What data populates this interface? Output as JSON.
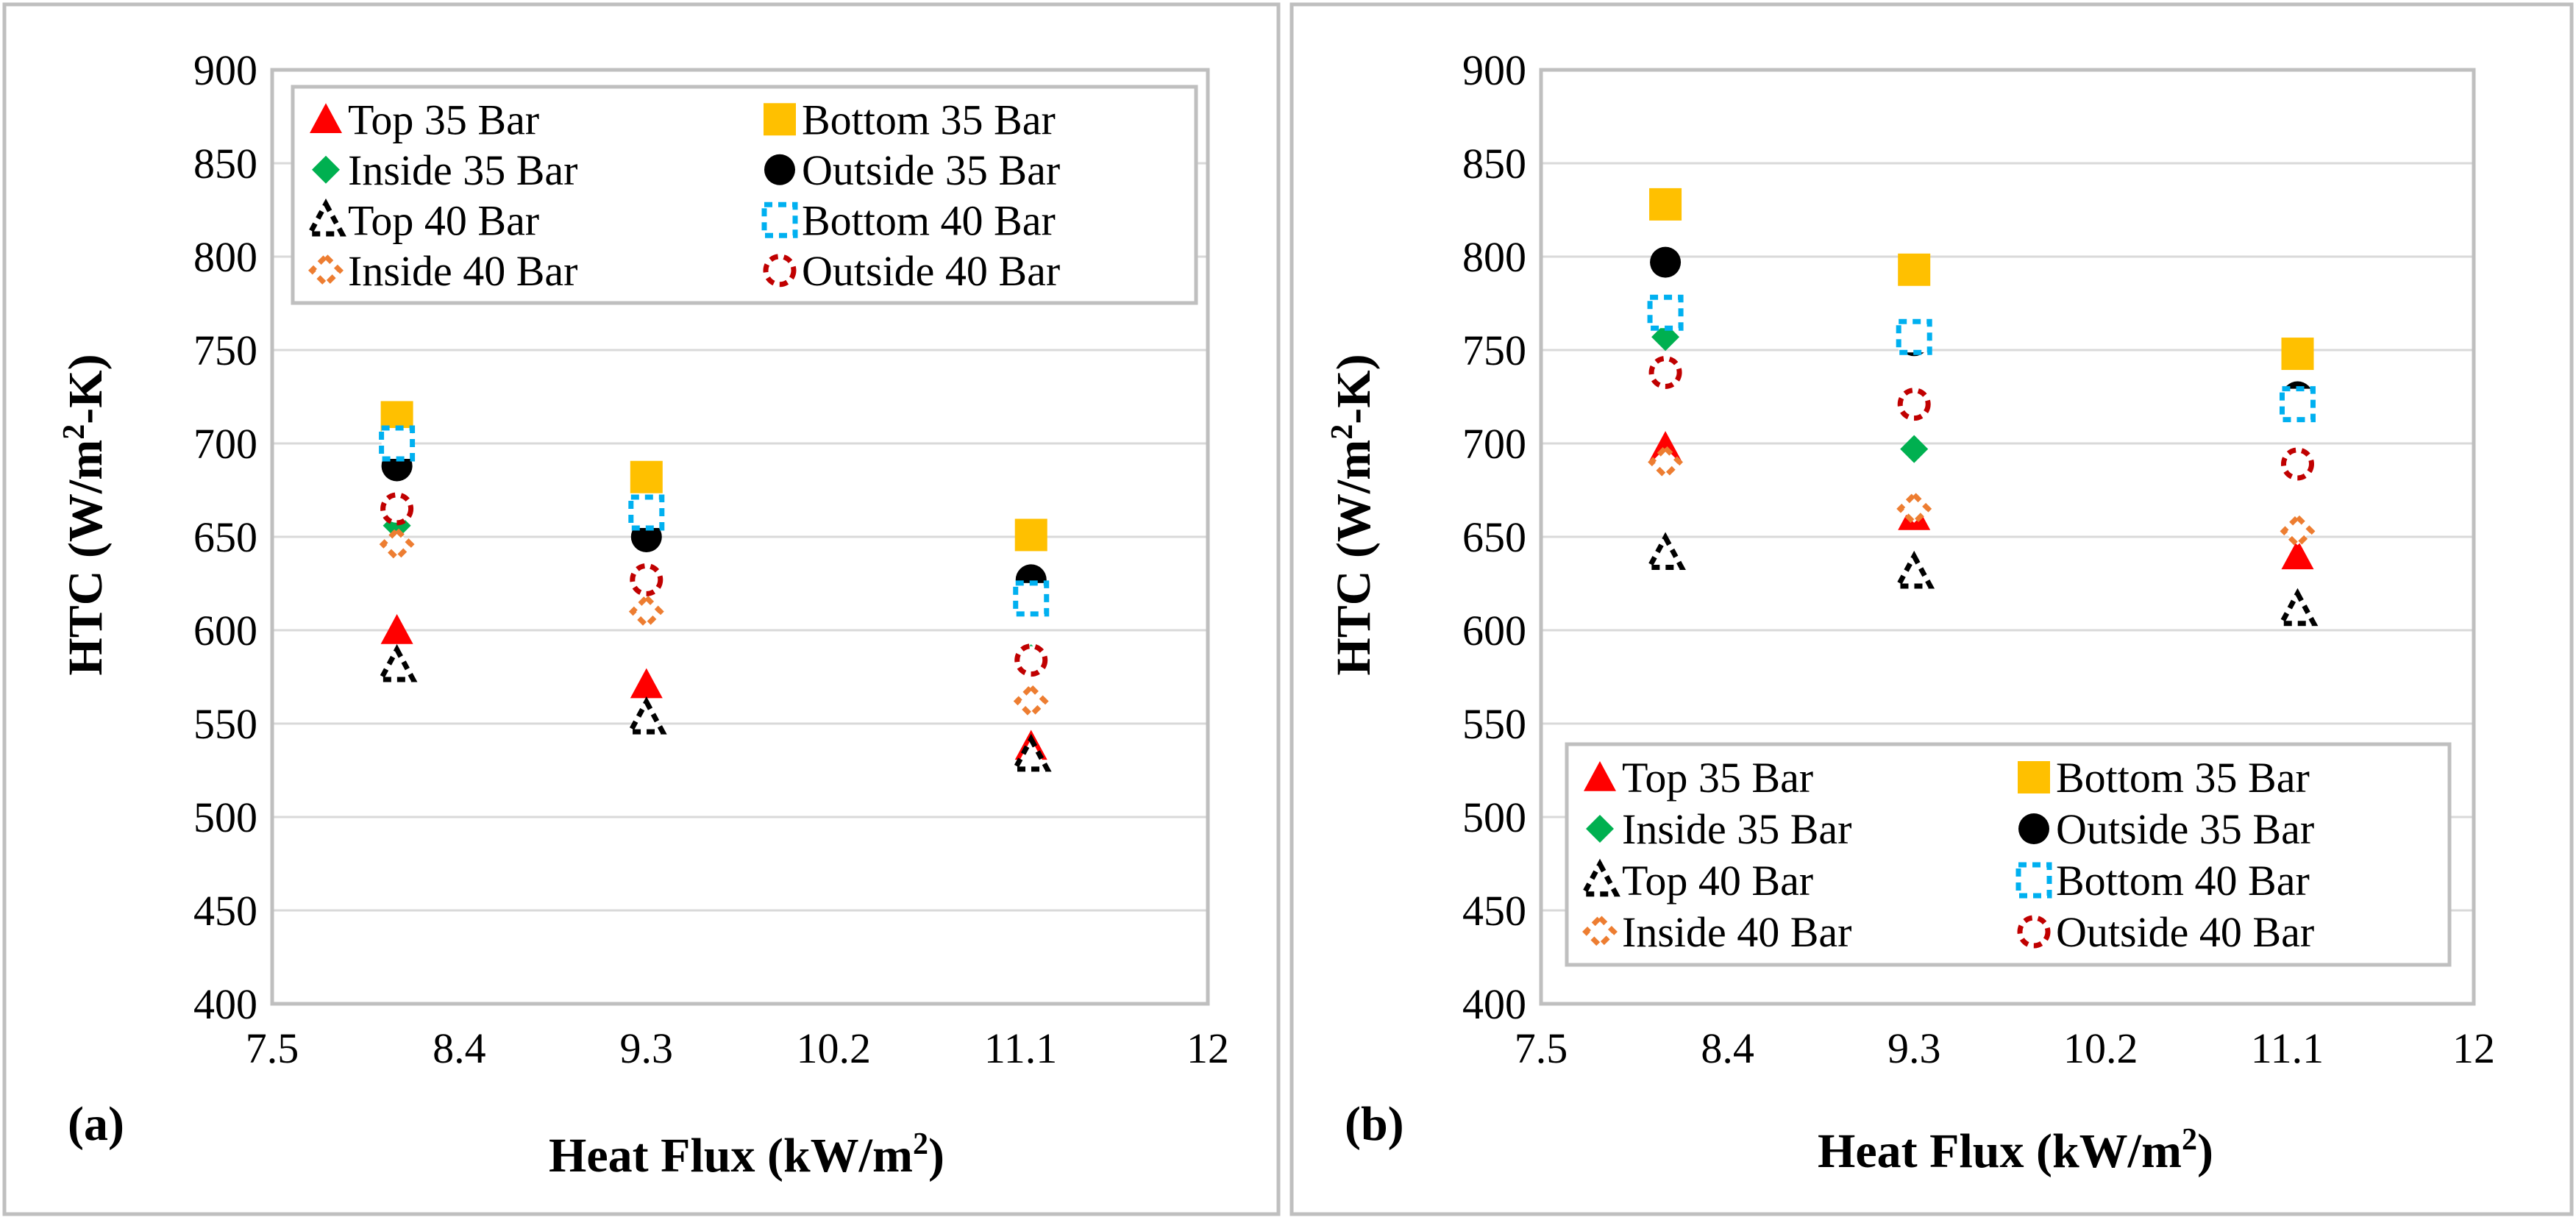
{
  "chart_data": [
    {
      "type": "scatter",
      "panel_label": "(a)",
      "title": "",
      "xlabel": "Heat Flux (kW/m",
      "xlabel_sup": "2",
      "xlabel_end": ")",
      "ylabel": "HTC (W/m",
      "ylabel_sup": "2",
      "ylabel_end": "-K)",
      "xlim": [
        7.5,
        12
      ],
      "ylim": [
        400,
        900
      ],
      "xticks": [
        "7.5",
        "8.4",
        "9.3",
        "10.2",
        "11.1",
        "12"
      ],
      "yticks": [
        "400",
        "450",
        "500",
        "550",
        "600",
        "650",
        "700",
        "750",
        "800",
        "850",
        "900"
      ],
      "legend_position": "top",
      "x": [
        8.1,
        9.3,
        11.15
      ],
      "series": [
        {
          "name": "Top 35 Bar",
          "marker": "triangle",
          "filled": true,
          "color": "#ff0000",
          "values": [
            600,
            571,
            538
          ]
        },
        {
          "name": "Bottom 35 Bar",
          "marker": "square",
          "filled": true,
          "color": "#ffc000",
          "values": [
            714,
            682,
            651
          ]
        },
        {
          "name": "Inside 35 Bar",
          "marker": "diamond",
          "filled": true,
          "color": "#00b050",
          "values": [
            656,
            627,
            585
          ]
        },
        {
          "name": "Outside 35 Bar",
          "marker": "circle",
          "filled": true,
          "color": "#000000",
          "values": [
            688,
            650,
            627
          ]
        },
        {
          "name": "Top 40 Bar",
          "marker": "triangle",
          "filled": false,
          "color": "#000000",
          "values": [
            581,
            553,
            533
          ]
        },
        {
          "name": "Bottom 40 Bar",
          "marker": "square",
          "filled": false,
          "color": "#00b0f0",
          "values": [
            700,
            663,
            617
          ]
        },
        {
          "name": "Inside 40 Bar",
          "marker": "diamond",
          "filled": false,
          "color": "#ed7d31",
          "values": [
            646,
            610,
            562
          ]
        },
        {
          "name": "Outside 40 Bar",
          "marker": "circle",
          "filled": false,
          "color": "#c00000",
          "values": [
            665,
            627,
            584
          ]
        }
      ]
    },
    {
      "type": "scatter",
      "panel_label": "(b)",
      "title": "",
      "xlabel": "Heat Flux (kW/m",
      "xlabel_sup": "2",
      "xlabel_end": ")",
      "ylabel": "HTC (W/m",
      "ylabel_sup": "2",
      "ylabel_end": "-K)",
      "xlim": [
        7.5,
        12
      ],
      "ylim": [
        400,
        900
      ],
      "xticks": [
        "7.5",
        "8.4",
        "9.3",
        "10.2",
        "11.1",
        "12"
      ],
      "yticks": [
        "400",
        "450",
        "500",
        "550",
        "600",
        "650",
        "700",
        "750",
        "800",
        "850",
        "900"
      ],
      "legend_position": "bottom",
      "x": [
        8.1,
        9.3,
        11.15
      ],
      "series": [
        {
          "name": "Top 35 Bar",
          "marker": "triangle",
          "filled": true,
          "color": "#ff0000",
          "values": [
            698,
            661,
            640
          ]
        },
        {
          "name": "Bottom 35 Bar",
          "marker": "square",
          "filled": true,
          "color": "#ffc000",
          "values": [
            828,
            793,
            748
          ]
        },
        {
          "name": "Inside 35 Bar",
          "marker": "diamond",
          "filled": true,
          "color": "#00b050",
          "values": [
            757,
            697,
            689
          ]
        },
        {
          "name": "Outside 35 Bar",
          "marker": "circle",
          "filled": true,
          "color": "#000000",
          "values": [
            797,
            755,
            725
          ]
        },
        {
          "name": "Top 40 Bar",
          "marker": "triangle",
          "filled": false,
          "color": "#000000",
          "values": [
            641,
            631,
            611
          ]
        },
        {
          "name": "Bottom 40 Bar",
          "marker": "square",
          "filled": false,
          "color": "#00b0f0",
          "values": [
            770,
            757,
            721
          ]
        },
        {
          "name": "Inside 40 Bar",
          "marker": "diamond",
          "filled": false,
          "color": "#ed7d31",
          "values": [
            690,
            665,
            653
          ]
        },
        {
          "name": "Outside 40 Bar",
          "marker": "circle",
          "filled": false,
          "color": "#c00000",
          "values": [
            738,
            721,
            689
          ]
        }
      ]
    }
  ]
}
